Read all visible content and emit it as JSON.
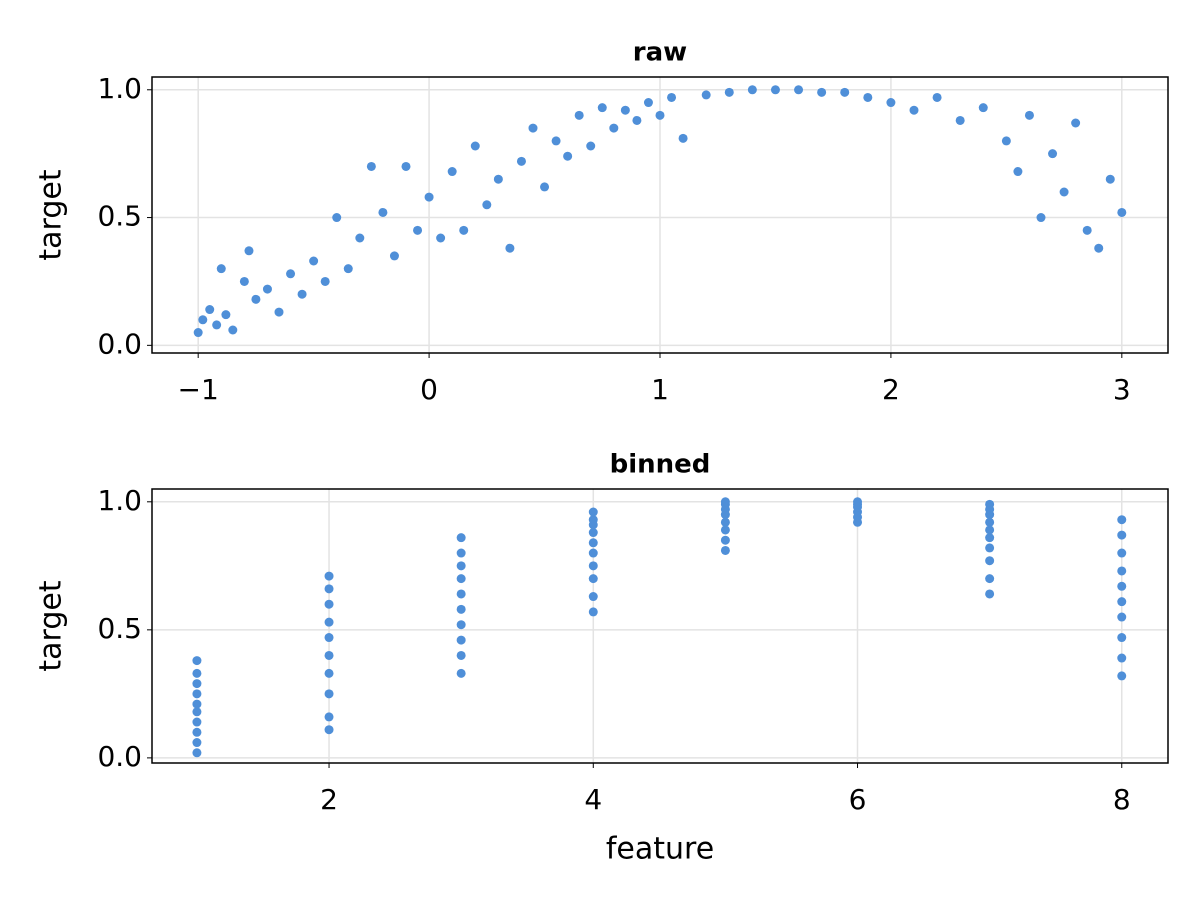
{
  "chart_data": [
    {
      "type": "scatter",
      "title": "raw",
      "y_label": "target",
      "color": "#4f8fd8",
      "grid": true,
      "xlim": [
        -1.2,
        3.2
      ],
      "ylim": [
        -0.03,
        1.05
      ],
      "xticks": [
        {
          "value": -1,
          "label": "−1"
        },
        0,
        1,
        2,
        3
      ],
      "yticks": [
        {
          "value": 0,
          "label": "0.0"
        },
        {
          "value": 0.5,
          "label": "0.5"
        },
        {
          "value": 1,
          "label": "1.0"
        }
      ],
      "x": [
        -1,
        -0.98,
        -0.95,
        -0.92,
        -0.9,
        -0.88,
        -0.85,
        -0.8,
        -0.78,
        -0.75,
        -0.7,
        -0.65,
        -0.6,
        -0.55,
        -0.5,
        -0.45,
        -0.4,
        -0.35,
        -0.3,
        -0.25,
        -0.2,
        -0.15,
        -0.1,
        -0.05,
        0,
        0.05,
        0.1,
        0.15,
        0.2,
        0.25,
        0.3,
        0.35,
        0.4,
        0.45,
        0.5,
        0.55,
        0.6,
        0.65,
        0.7,
        0.75,
        0.8,
        0.85,
        0.9,
        0.95,
        1.0,
        1.05,
        1.1,
        1.2,
        1.3,
        1.4,
        1.5,
        1.6,
        1.7,
        1.8,
        1.9,
        2.0,
        2.1,
        2.2,
        2.3,
        2.4,
        2.5,
        2.55,
        2.6,
        2.65,
        2.7,
        2.75,
        2.8,
        2.85,
        2.9,
        2.95,
        3.0
      ],
      "values": [
        0.05,
        0.1,
        0.14,
        0.08,
        0.3,
        0.12,
        0.06,
        0.25,
        0.37,
        0.18,
        0.22,
        0.13,
        0.28,
        0.2,
        0.33,
        0.25,
        0.5,
        0.3,
        0.42,
        0.7,
        0.52,
        0.35,
        0.7,
        0.45,
        0.58,
        0.42,
        0.68,
        0.45,
        0.78,
        0.55,
        0.65,
        0.38,
        0.72,
        0.85,
        0.62,
        0.8,
        0.74,
        0.9,
        0.78,
        0.93,
        0.85,
        0.92,
        0.88,
        0.95,
        0.9,
        0.97,
        0.81,
        0.98,
        0.99,
        1.0,
        1.0,
        1.0,
        0.99,
        0.99,
        0.97,
        0.95,
        0.92,
        0.97,
        0.88,
        0.93,
        0.8,
        0.68,
        0.9,
        0.5,
        0.75,
        0.6,
        0.87,
        0.45,
        0.38,
        0.65,
        0.52
      ]
    },
    {
      "type": "scatter",
      "title": "binned",
      "x_label": "feature",
      "y_label": "target",
      "color": "#4f8fd8",
      "grid": true,
      "xlim": [
        0.66,
        8.35
      ],
      "ylim": [
        -0.02,
        1.05
      ],
      "xticks": [
        2,
        4,
        6,
        8
      ],
      "yticks": [
        {
          "value": 0,
          "label": "0.0"
        },
        {
          "value": 0.5,
          "label": "0.5"
        },
        {
          "value": 1,
          "label": "1.0"
        }
      ],
      "x": [
        1,
        1,
        1,
        1,
        1,
        1,
        1,
        1,
        1,
        1,
        2,
        2,
        2,
        2,
        2,
        2,
        2,
        2,
        2,
        2,
        3,
        3,
        3,
        3,
        3,
        3,
        3,
        3,
        3,
        3,
        4,
        4,
        4,
        4,
        4,
        4,
        4,
        4,
        4,
        4,
        5,
        5,
        5,
        5,
        5,
        5,
        5,
        5,
        6,
        6,
        6,
        6,
        6,
        6,
        7,
        7,
        7,
        7,
        7,
        7,
        7,
        7,
        7,
        7,
        8,
        8,
        8,
        8,
        8,
        8,
        8,
        8,
        8,
        8
      ],
      "values": [
        0.02,
        0.06,
        0.1,
        0.14,
        0.18,
        0.21,
        0.25,
        0.29,
        0.33,
        0.38,
        0.11,
        0.16,
        0.25,
        0.33,
        0.4,
        0.47,
        0.53,
        0.6,
        0.66,
        0.71,
        0.33,
        0.4,
        0.46,
        0.52,
        0.58,
        0.64,
        0.7,
        0.75,
        0.8,
        0.86,
        0.57,
        0.63,
        0.7,
        0.75,
        0.8,
        0.84,
        0.88,
        0.91,
        0.93,
        0.96,
        0.81,
        0.85,
        0.89,
        0.92,
        0.95,
        0.97,
        0.99,
        1.0,
        0.92,
        0.94,
        0.96,
        0.98,
        0.99,
        1.0,
        0.64,
        0.7,
        0.77,
        0.82,
        0.86,
        0.89,
        0.92,
        0.95,
        0.97,
        0.99,
        0.32,
        0.39,
        0.47,
        0.55,
        0.61,
        0.67,
        0.73,
        0.8,
        0.87,
        0.93
      ]
    }
  ]
}
